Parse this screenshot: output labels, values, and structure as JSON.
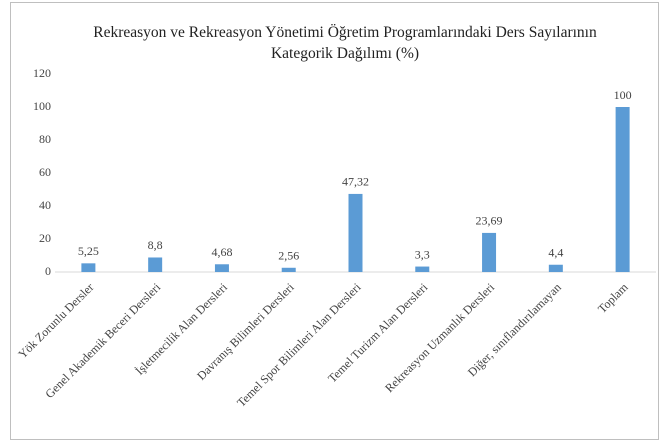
{
  "chart_data": {
    "type": "bar",
    "title": "Rekreasyon ve Rekreasyon Yönetimi Öğretim Programlarındaki Ders Sayılarının Kategorik Dağılımı (%)",
    "categories": [
      "Yök Zorunlu Dersler",
      "Genel Akademik Beceri Dersleri",
      "İşletmecilik Alan Dersleri",
      "Davranış Bilimleri Dersleri",
      "Temel Spor Bilimleri Alan Dersleri",
      "Temel Turizm Alan Dersleri",
      "Rekreasyon Uzmanlık Dersleri",
      "Diğer, sınıflandırılamayan",
      "Toplam"
    ],
    "values": [
      5.25,
      8.8,
      4.68,
      2.56,
      47.32,
      3.3,
      23.69,
      4.4,
      100
    ],
    "value_labels": [
      "5,25",
      "8,8",
      "4,68",
      "2,56",
      "47,32",
      "3,3",
      "23,69",
      "4,4",
      "100"
    ],
    "color": "#5b9bd5",
    "ylim": [
      0,
      120
    ],
    "yticks": [
      0,
      20,
      40,
      60,
      80,
      100,
      120
    ],
    "grid": false
  }
}
